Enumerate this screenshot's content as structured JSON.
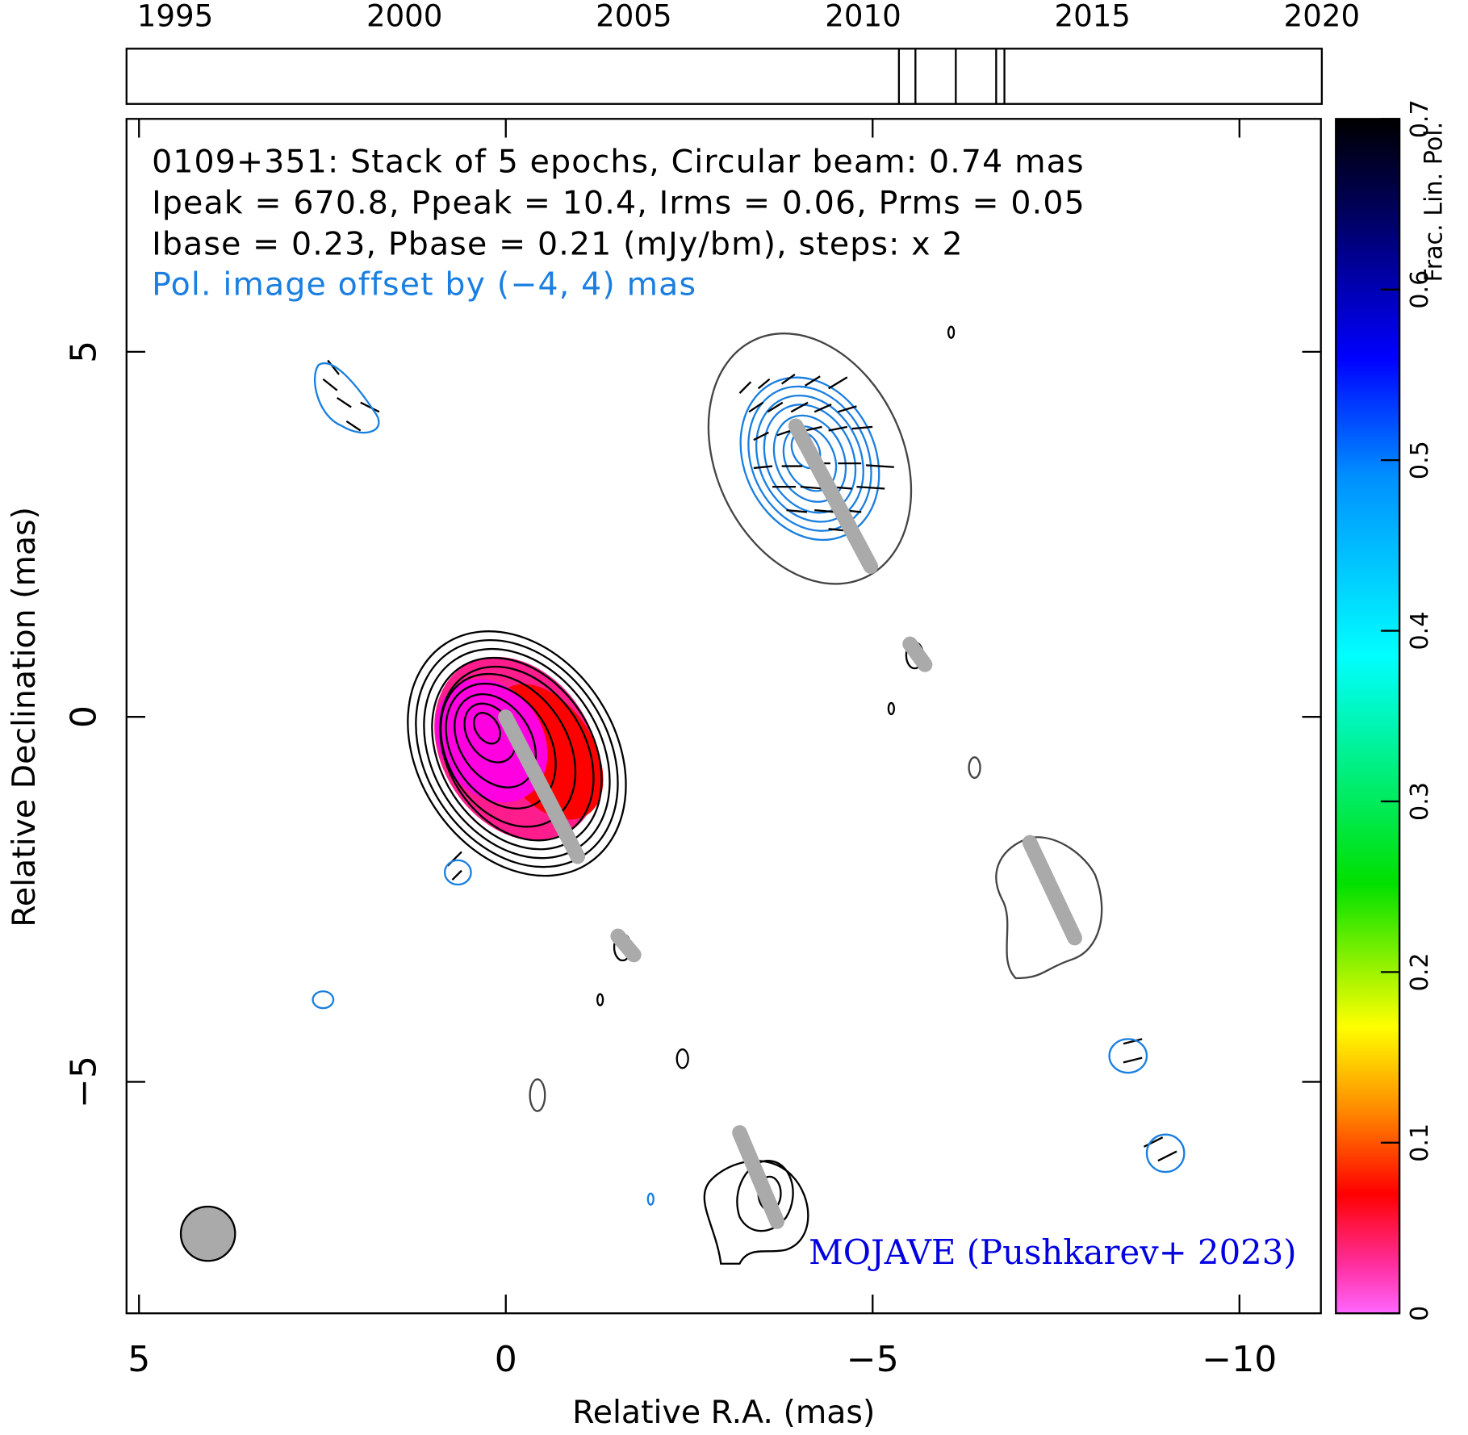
{
  "chart_data": {
    "type": "polarization-map",
    "title_lines": [
      "0109+351: Stack of 5 epochs, Circular beam: 0.74 mas",
      "Ipeak = 670.8, Ppeak = 10.4, Irms = 0.06, Prms = 0.05",
      "Ibase = 0.23, Pbase = 0.21 (mJy/bm), steps: x 2"
    ],
    "offset_note": "Pol. image offset by (−4, 4) mas",
    "credit": "MOJAVE (Pushkarev+ 2023)",
    "xlabel": "Relative R.A. (mas)",
    "ylabel": "Relative Declination (mas)",
    "xlim": [
      5.17,
      -11.11
    ],
    "ylim": [
      -8.17,
      8.19
    ],
    "xticks": [
      5,
      0,
      {
        "value": -5,
        "label": "−5"
      },
      {
        "value": -10,
        "label": "−10"
      }
    ],
    "yticks": [
      5,
      0,
      {
        "value": -5,
        "label": "−5"
      }
    ],
    "timeline": {
      "xlim": [
        1993.94,
        2020
      ],
      "xticks": [
        1995,
        2000,
        2005,
        2010,
        2015,
        2020
      ],
      "epochs": [
        2010.78,
        2011.14,
        2012.02,
        2012.9,
        2013.08
      ]
    },
    "colorbar": {
      "label": "Frac. Lin. Pol.",
      "ylim": [
        0,
        0.7
      ],
      "yticks": [
        0,
        0.1,
        0.2,
        0.3,
        0.4,
        0.5,
        0.6,
        0.7
      ]
    }
  }
}
